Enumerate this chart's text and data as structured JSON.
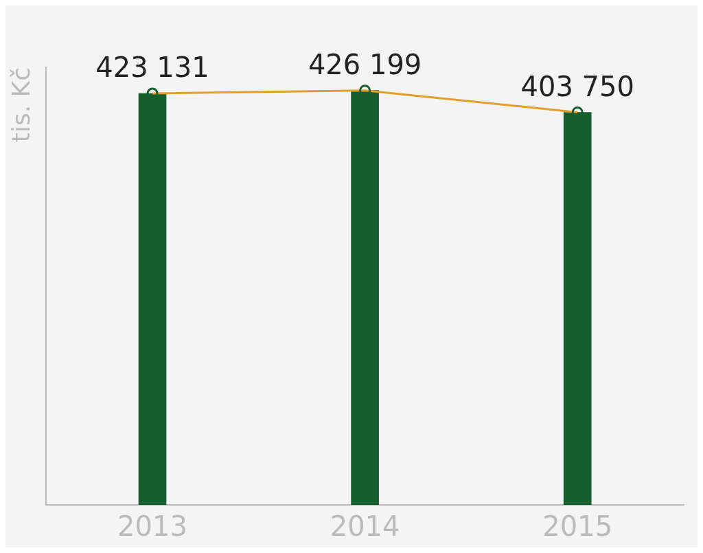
{
  "chart_data": {
    "type": "bar",
    "ylabel": "tis. Kč",
    "categories": [
      "2013",
      "2014",
      "2015"
    ],
    "series": [
      {
        "color": "#155e2e",
        "values": [
          423131,
          426199,
          403750
        ]
      },
      {
        "type": "line",
        "color": "#e39e2e",
        "values": [
          423131,
          426199,
          403750
        ],
        "marker": "circle",
        "value_labels": [
          "423 131",
          "426 199",
          "403 750"
        ]
      }
    ],
    "grid": false,
    "legend": false
  }
}
